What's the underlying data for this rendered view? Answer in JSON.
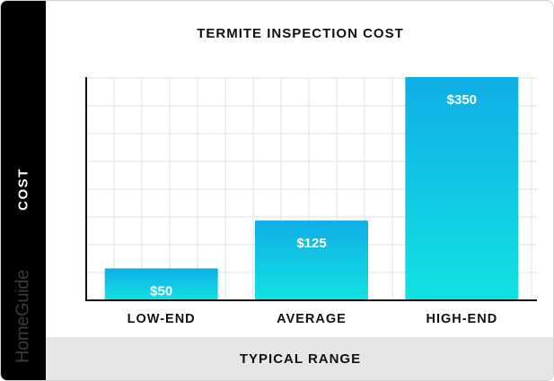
{
  "chart_data": {
    "type": "bar",
    "title": "TERMITE INSPECTION COST",
    "xlabel": "TYPICAL RANGE",
    "ylabel": "COST",
    "categories": [
      "LOW-END",
      "AVERAGE",
      "HIGH-END"
    ],
    "values": [
      50,
      125,
      350
    ],
    "data_labels": [
      "$50",
      "$125",
      "$350"
    ],
    "ylim": [
      0,
      350
    ],
    "grid": true,
    "legend": "none",
    "colors": {
      "bar_top": "#10aee6",
      "bar_bottom": "#12e2e2",
      "grid": "#e2e2e2",
      "axis": "#111111"
    }
  },
  "brand": {
    "name": "HomeGuide"
  }
}
